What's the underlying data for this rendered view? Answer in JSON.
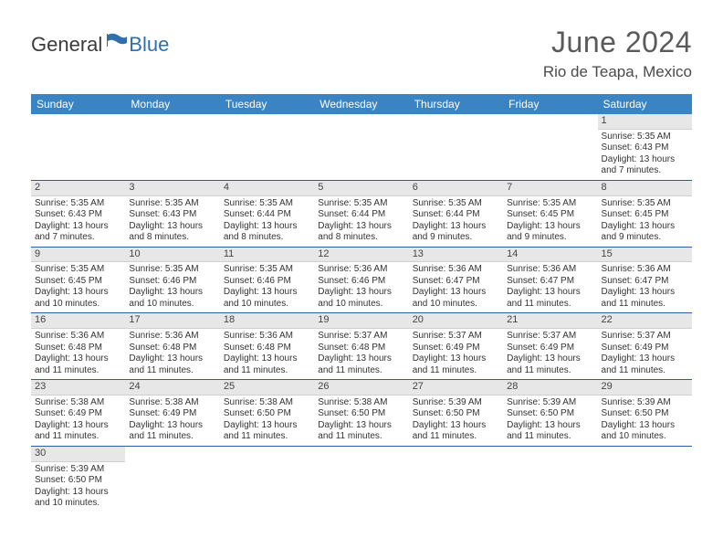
{
  "brand": {
    "part1": "General",
    "part2": "Blue",
    "text_color": "#3b3b3b",
    "accent_color": "#2f6fad"
  },
  "header": {
    "title": "June 2024",
    "location": "Rio de Teapa, Mexico",
    "title_color": "#5a5a5a"
  },
  "colors": {
    "th_bg": "#3a84c4",
    "th_text": "#ffffff",
    "cell_border": "#2b5da0",
    "daynum_bg": "#e7e7e7",
    "empty_bg": "#ececec",
    "page_bg": "#ffffff"
  },
  "week_header": [
    "Sunday",
    "Monday",
    "Tuesday",
    "Wednesday",
    "Thursday",
    "Friday",
    "Saturday"
  ],
  "weeks": [
    [
      null,
      null,
      null,
      null,
      null,
      null,
      {
        "n": "1",
        "sr": "Sunrise: 5:35 AM",
        "ss": "Sunset: 6:43 PM",
        "d1": "Daylight: 13 hours",
        "d2": "and 7 minutes."
      }
    ],
    [
      {
        "n": "2",
        "sr": "Sunrise: 5:35 AM",
        "ss": "Sunset: 6:43 PM",
        "d1": "Daylight: 13 hours",
        "d2": "and 7 minutes."
      },
      {
        "n": "3",
        "sr": "Sunrise: 5:35 AM",
        "ss": "Sunset: 6:43 PM",
        "d1": "Daylight: 13 hours",
        "d2": "and 8 minutes."
      },
      {
        "n": "4",
        "sr": "Sunrise: 5:35 AM",
        "ss": "Sunset: 6:44 PM",
        "d1": "Daylight: 13 hours",
        "d2": "and 8 minutes."
      },
      {
        "n": "5",
        "sr": "Sunrise: 5:35 AM",
        "ss": "Sunset: 6:44 PM",
        "d1": "Daylight: 13 hours",
        "d2": "and 8 minutes."
      },
      {
        "n": "6",
        "sr": "Sunrise: 5:35 AM",
        "ss": "Sunset: 6:44 PM",
        "d1": "Daylight: 13 hours",
        "d2": "and 9 minutes."
      },
      {
        "n": "7",
        "sr": "Sunrise: 5:35 AM",
        "ss": "Sunset: 6:45 PM",
        "d1": "Daylight: 13 hours",
        "d2": "and 9 minutes."
      },
      {
        "n": "8",
        "sr": "Sunrise: 5:35 AM",
        "ss": "Sunset: 6:45 PM",
        "d1": "Daylight: 13 hours",
        "d2": "and 9 minutes."
      }
    ],
    [
      {
        "n": "9",
        "sr": "Sunrise: 5:35 AM",
        "ss": "Sunset: 6:45 PM",
        "d1": "Daylight: 13 hours",
        "d2": "and 10 minutes."
      },
      {
        "n": "10",
        "sr": "Sunrise: 5:35 AM",
        "ss": "Sunset: 6:46 PM",
        "d1": "Daylight: 13 hours",
        "d2": "and 10 minutes."
      },
      {
        "n": "11",
        "sr": "Sunrise: 5:35 AM",
        "ss": "Sunset: 6:46 PM",
        "d1": "Daylight: 13 hours",
        "d2": "and 10 minutes."
      },
      {
        "n": "12",
        "sr": "Sunrise: 5:36 AM",
        "ss": "Sunset: 6:46 PM",
        "d1": "Daylight: 13 hours",
        "d2": "and 10 minutes."
      },
      {
        "n": "13",
        "sr": "Sunrise: 5:36 AM",
        "ss": "Sunset: 6:47 PM",
        "d1": "Daylight: 13 hours",
        "d2": "and 10 minutes."
      },
      {
        "n": "14",
        "sr": "Sunrise: 5:36 AM",
        "ss": "Sunset: 6:47 PM",
        "d1": "Daylight: 13 hours",
        "d2": "and 11 minutes."
      },
      {
        "n": "15",
        "sr": "Sunrise: 5:36 AM",
        "ss": "Sunset: 6:47 PM",
        "d1": "Daylight: 13 hours",
        "d2": "and 11 minutes."
      }
    ],
    [
      {
        "n": "16",
        "sr": "Sunrise: 5:36 AM",
        "ss": "Sunset: 6:48 PM",
        "d1": "Daylight: 13 hours",
        "d2": "and 11 minutes."
      },
      {
        "n": "17",
        "sr": "Sunrise: 5:36 AM",
        "ss": "Sunset: 6:48 PM",
        "d1": "Daylight: 13 hours",
        "d2": "and 11 minutes."
      },
      {
        "n": "18",
        "sr": "Sunrise: 5:36 AM",
        "ss": "Sunset: 6:48 PM",
        "d1": "Daylight: 13 hours",
        "d2": "and 11 minutes."
      },
      {
        "n": "19",
        "sr": "Sunrise: 5:37 AM",
        "ss": "Sunset: 6:48 PM",
        "d1": "Daylight: 13 hours",
        "d2": "and 11 minutes."
      },
      {
        "n": "20",
        "sr": "Sunrise: 5:37 AM",
        "ss": "Sunset: 6:49 PM",
        "d1": "Daylight: 13 hours",
        "d2": "and 11 minutes."
      },
      {
        "n": "21",
        "sr": "Sunrise: 5:37 AM",
        "ss": "Sunset: 6:49 PM",
        "d1": "Daylight: 13 hours",
        "d2": "and 11 minutes."
      },
      {
        "n": "22",
        "sr": "Sunrise: 5:37 AM",
        "ss": "Sunset: 6:49 PM",
        "d1": "Daylight: 13 hours",
        "d2": "and 11 minutes."
      }
    ],
    [
      {
        "n": "23",
        "sr": "Sunrise: 5:38 AM",
        "ss": "Sunset: 6:49 PM",
        "d1": "Daylight: 13 hours",
        "d2": "and 11 minutes."
      },
      {
        "n": "24",
        "sr": "Sunrise: 5:38 AM",
        "ss": "Sunset: 6:49 PM",
        "d1": "Daylight: 13 hours",
        "d2": "and 11 minutes."
      },
      {
        "n": "25",
        "sr": "Sunrise: 5:38 AM",
        "ss": "Sunset: 6:50 PM",
        "d1": "Daylight: 13 hours",
        "d2": "and 11 minutes."
      },
      {
        "n": "26",
        "sr": "Sunrise: 5:38 AM",
        "ss": "Sunset: 6:50 PM",
        "d1": "Daylight: 13 hours",
        "d2": "and 11 minutes."
      },
      {
        "n": "27",
        "sr": "Sunrise: 5:39 AM",
        "ss": "Sunset: 6:50 PM",
        "d1": "Daylight: 13 hours",
        "d2": "and 11 minutes."
      },
      {
        "n": "28",
        "sr": "Sunrise: 5:39 AM",
        "ss": "Sunset: 6:50 PM",
        "d1": "Daylight: 13 hours",
        "d2": "and 11 minutes."
      },
      {
        "n": "29",
        "sr": "Sunrise: 5:39 AM",
        "ss": "Sunset: 6:50 PM",
        "d1": "Daylight: 13 hours",
        "d2": "and 10 minutes."
      }
    ],
    [
      {
        "n": "30",
        "sr": "Sunrise: 5:39 AM",
        "ss": "Sunset: 6:50 PM",
        "d1": "Daylight: 13 hours",
        "d2": "and 10 minutes."
      },
      null,
      null,
      null,
      null,
      null,
      null
    ]
  ]
}
